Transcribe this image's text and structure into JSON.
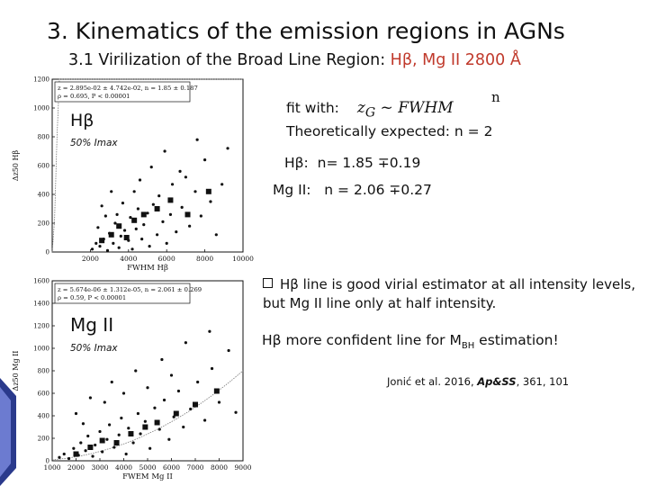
{
  "title": "3. Kinematics of the emission regions in AGNs",
  "subtitle": {
    "prefix": "3.1 Virilization of the Broad Line Region: ",
    "highlight": "Hβ, Mg II 2800 Å"
  },
  "fit": {
    "line1": "fit with:",
    "formula": "z",
    "formula_sub": "G",
    "formula_rest": " ~ FWHM",
    "exponent": "n",
    "line2": "Theoretically expected: n = 2"
  },
  "results": [
    {
      "label": "Hβ:",
      "value": "n= 1.85 ∓0.19"
    },
    {
      "label": "Mg II:",
      "value": "n = 2.06 ∓0.27"
    }
  ],
  "bullet": "Hβ line is good virial estimator at all intensity levels, but Mg II line only at half intensity.",
  "conclusion": {
    "pre": "Hβ more confident line for M",
    "sub": "BH",
    "post": " estimation!"
  },
  "citation": {
    "authors": "Jonić et al. 2016, ",
    "journal": "Ap&SS",
    "rest": ", 361, 101"
  },
  "chart_data": [
    {
      "type": "scatter",
      "title": "Hβ",
      "panel_note": "50% Imax",
      "xlabel": "FWHM Hβ",
      "ylabel": "Δz50 Hβ",
      "xlim": [
        0,
        10000
      ],
      "ylim": [
        0,
        1200
      ],
      "xticks": [
        "2000",
        "4000",
        "6000",
        "8000",
        "10000"
      ],
      "yticks": [
        "0",
        "200",
        "400",
        "600",
        "800",
        "1000",
        "1200"
      ],
      "fit_text": [
        "z = 2.895e-02 ± 4.742e-02, n = 1.85 ± 0.187",
        "ρ = 0.695, P < 0.00001"
      ],
      "fit_curve": {
        "a": 0.02895,
        "n": 1.85
      },
      "small_points": [
        [
          2100,
          20
        ],
        [
          2300,
          60
        ],
        [
          2500,
          40
        ],
        [
          2700,
          90
        ],
        [
          2900,
          10
        ],
        [
          3000,
          130
        ],
        [
          3200,
          60
        ],
        [
          3300,
          200
        ],
        [
          3500,
          30
        ],
        [
          3600,
          110
        ],
        [
          3800,
          150
        ],
        [
          4000,
          80
        ],
        [
          4100,
          240
        ],
        [
          4200,
          20
        ],
        [
          4400,
          160
        ],
        [
          4500,
          300
        ],
        [
          4700,
          90
        ],
        [
          4800,
          190
        ],
        [
          5000,
          270
        ],
        [
          5100,
          40
        ],
        [
          5300,
          330
        ],
        [
          5500,
          120
        ],
        [
          5600,
          390
        ],
        [
          5800,
          210
        ],
        [
          6000,
          60
        ],
        [
          6200,
          260
        ],
        [
          6300,
          470
        ],
        [
          6500,
          140
        ],
        [
          6800,
          310
        ],
        [
          7000,
          520
        ],
        [
          7200,
          180
        ],
        [
          7500,
          420
        ],
        [
          7800,
          250
        ],
        [
          8000,
          640
        ],
        [
          8300,
          350
        ],
        [
          8600,
          120
        ],
        [
          8900,
          470
        ],
        [
          9200,
          720
        ],
        [
          2600,
          320
        ],
        [
          3100,
          420
        ],
        [
          3400,
          260
        ],
        [
          4300,
          420
        ],
        [
          5200,
          590
        ],
        [
          4600,
          500
        ],
        [
          5900,
          700
        ],
        [
          2400,
          170
        ],
        [
          2800,
          250
        ],
        [
          3700,
          340
        ],
        [
          6700,
          560
        ],
        [
          7600,
          780
        ]
      ],
      "big_points": [
        [
          2600,
          80
        ],
        [
          3100,
          120
        ],
        [
          3500,
          180
        ],
        [
          3900,
          100
        ],
        [
          4300,
          220
        ],
        [
          4800,
          260
        ],
        [
          5500,
          300
        ],
        [
          6200,
          360
        ],
        [
          7100,
          260
        ],
        [
          8200,
          420
        ]
      ]
    },
    {
      "type": "scatter",
      "title": "Mg II",
      "panel_note": "50% Imax",
      "xlabel": "FWEM Mg II",
      "ylabel": "Δz50 Mg II",
      "xlim": [
        1000,
        9000
      ],
      "ylim": [
        0,
        1600
      ],
      "xticks": [
        "1000",
        "2000",
        "3000",
        "4000",
        "5000",
        "6000",
        "7000",
        "8000",
        "9000"
      ],
      "yticks": [
        "0",
        "200",
        "400",
        "600",
        "800",
        "1000",
        "1200",
        "1400",
        "1600"
      ],
      "fit_text": [
        "z = 5.674e-06 ± 1.312e-05, n = 2.061 ± 0.269",
        "ρ = 0.59, P < 0.00001"
      ],
      "fit_curve": {
        "a": 5.674e-06,
        "n": 2.061
      },
      "small_points": [
        [
          1300,
          30
        ],
        [
          1500,
          60
        ],
        [
          1700,
          20
        ],
        [
          1900,
          110
        ],
        [
          2100,
          50
        ],
        [
          2200,
          160
        ],
        [
          2400,
          90
        ],
        [
          2500,
          220
        ],
        [
          2700,
          40
        ],
        [
          2800,
          140
        ],
        [
          3000,
          260
        ],
        [
          3100,
          80
        ],
        [
          3300,
          190
        ],
        [
          3400,
          320
        ],
        [
          3600,
          120
        ],
        [
          3800,
          230
        ],
        [
          3900,
          380
        ],
        [
          4100,
          60
        ],
        [
          4200,
          290
        ],
        [
          4400,
          160
        ],
        [
          4600,
          420
        ],
        [
          4700,
          240
        ],
        [
          4900,
          350
        ],
        [
          5100,
          110
        ],
        [
          5300,
          470
        ],
        [
          5500,
          280
        ],
        [
          5700,
          540
        ],
        [
          5900,
          190
        ],
        [
          6100,
          390
        ],
        [
          6300,
          620
        ],
        [
          6500,
          300
        ],
        [
          6800,
          460
        ],
        [
          7100,
          700
        ],
        [
          7400,
          360
        ],
        [
          7700,
          820
        ],
        [
          8000,
          520
        ],
        [
          8400,
          980
        ],
        [
          8700,
          430
        ],
        [
          2000,
          420
        ],
        [
          2600,
          560
        ],
        [
          3500,
          700
        ],
        [
          4500,
          800
        ],
        [
          5600,
          900
        ],
        [
          6600,
          1050
        ],
        [
          7600,
          1150
        ],
        [
          3200,
          520
        ],
        [
          4000,
          600
        ],
        [
          2300,
          330
        ],
        [
          5000,
          650
        ],
        [
          6000,
          760
        ]
      ],
      "big_points": [
        [
          2000,
          60
        ],
        [
          2600,
          120
        ],
        [
          3100,
          180
        ],
        [
          3700,
          160
        ],
        [
          4300,
          240
        ],
        [
          4900,
          300
        ],
        [
          5400,
          340
        ],
        [
          6200,
          420
        ],
        [
          7000,
          500
        ],
        [
          7900,
          620
        ]
      ]
    }
  ]
}
